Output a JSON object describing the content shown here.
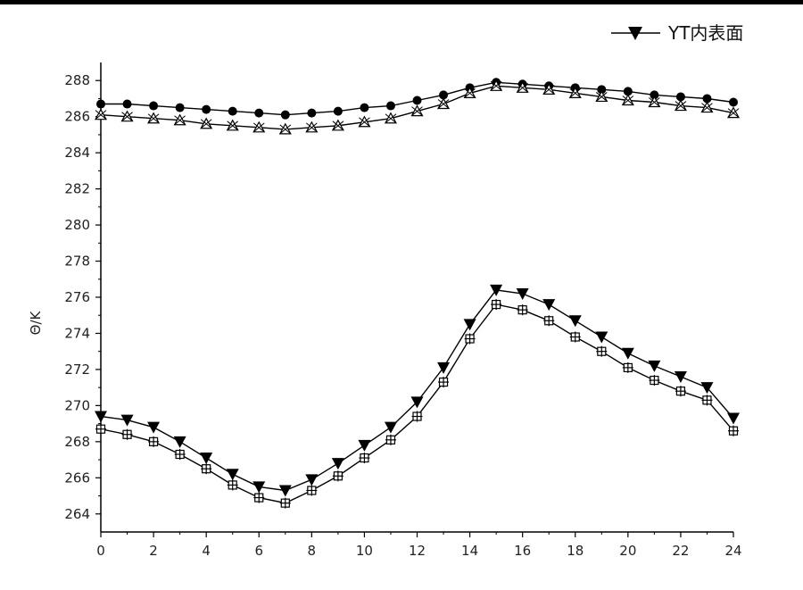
{
  "chart_data": {
    "type": "line",
    "ylabel": "Θ/K",
    "xlim": [
      0,
      24
    ],
    "ylim": [
      263,
      289
    ],
    "xticks": [
      0,
      2,
      4,
      6,
      8,
      10,
      12,
      14,
      16,
      18,
      20,
      22,
      24
    ],
    "yticks": [
      264,
      266,
      268,
      270,
      272,
      274,
      276,
      278,
      280,
      282,
      284,
      286,
      288
    ],
    "grid": false,
    "legend_position": "top-right",
    "x": [
      0,
      1,
      2,
      3,
      4,
      5,
      6,
      7,
      8,
      9,
      10,
      11,
      12,
      13,
      14,
      15,
      16,
      17,
      18,
      19,
      20,
      21,
      22,
      23,
      24
    ],
    "series": [
      {
        "name": "YT内表面",
        "marker": "triangle-down-filled",
        "values": [
          269.4,
          269.2,
          268.8,
          268.0,
          267.1,
          266.2,
          265.5,
          265.3,
          265.9,
          266.8,
          267.8,
          268.8,
          270.2,
          272.1,
          274.5,
          276.4,
          276.2,
          275.6,
          274.7,
          273.8,
          272.9,
          272.2,
          271.6,
          271.0,
          269.3
        ]
      },
      {
        "name": "",
        "marker": "square-cross-open",
        "values": [
          268.7,
          268.4,
          268.0,
          267.3,
          266.5,
          265.6,
          264.9,
          264.6,
          265.3,
          266.1,
          267.1,
          268.1,
          269.4,
          271.3,
          273.7,
          275.6,
          275.3,
          274.7,
          273.8,
          273.0,
          272.1,
          271.4,
          270.8,
          270.3,
          268.6
        ]
      },
      {
        "name": "",
        "marker": "circle-filled",
        "values": [
          286.7,
          286.7,
          286.6,
          286.5,
          286.4,
          286.3,
          286.2,
          286.1,
          286.2,
          286.3,
          286.5,
          286.6,
          286.9,
          287.2,
          287.6,
          287.9,
          287.8,
          287.7,
          287.6,
          287.5,
          287.4,
          287.2,
          287.1,
          287.0,
          286.8
        ]
      },
      {
        "name": "",
        "marker": "triangle-up-cross",
        "values": [
          286.1,
          286.0,
          285.9,
          285.8,
          285.6,
          285.5,
          285.4,
          285.3,
          285.4,
          285.5,
          285.7,
          285.9,
          286.3,
          286.7,
          287.3,
          287.7,
          287.6,
          287.5,
          287.3,
          287.1,
          286.9,
          286.8,
          286.6,
          286.5,
          286.2
        ]
      }
    ]
  },
  "legend": {
    "label": "YT内表面",
    "marker_icon": "triangle-down-icon"
  },
  "colors": {
    "line": "#000000",
    "axis": "#000000",
    "background": "#ffffff"
  }
}
